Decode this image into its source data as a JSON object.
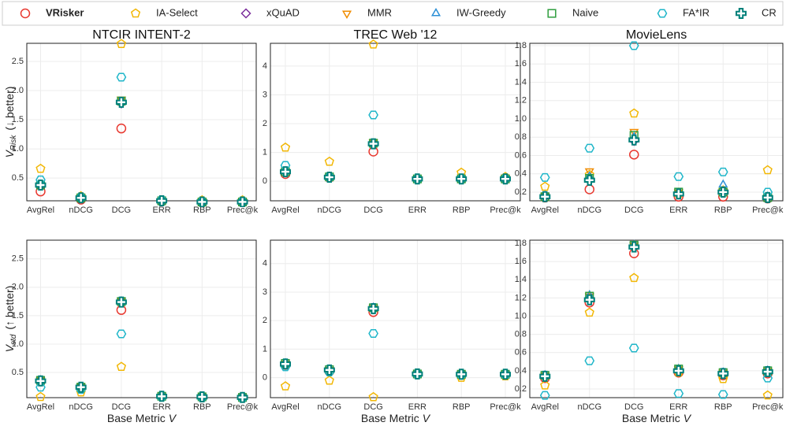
{
  "legend": {
    "series": [
      {
        "name": "VRisker",
        "color": "#e8382f",
        "marker": "circle"
      },
      {
        "name": "IA-Select",
        "color": "#f2b705",
        "marker": "pentagon"
      },
      {
        "name": "xQuAD",
        "color": "#7b2d9b",
        "marker": "diamond"
      },
      {
        "name": "MMR",
        "color": "#f08c00",
        "marker": "triangle-down"
      },
      {
        "name": "IW-Greedy",
        "color": "#2b8fd6",
        "marker": "triangle"
      },
      {
        "name": "Naive",
        "color": "#2e9e3e",
        "marker": "square"
      },
      {
        "name": "FA*IR",
        "color": "#1fb6c9",
        "marker": "hexagon"
      },
      {
        "name": "CR",
        "color": "#00807a",
        "marker": "plus"
      }
    ]
  },
  "chart_data": [
    {
      "type": "scatter",
      "title": "NTCIR INTENT-2",
      "ylabel_main": "V",
      "ylabel_sub": "Risk",
      "ylabel_note": "(↓ better)",
      "categories": [
        "AvgRel",
        "nDCG",
        "DCG",
        "ERR",
        "RBP",
        "Prec@k"
      ],
      "ylim": [
        0.11,
        2.81
      ],
      "yticks": [
        0.5,
        {
          "value": 1,
          "label": "1.0"
        },
        1.5,
        {
          "value": 2,
          "label": "2.0"
        },
        2.5
      ],
      "series": [
        {
          "values": [
            0.27,
            0.13,
            1.35,
            0.1,
            0.08,
            0.08
          ]
        },
        {
          "values": [
            0.66,
            0.19,
            2.8,
            0.12,
            0.12,
            0.12
          ]
        },
        {
          "values": [
            0.38,
            0.16,
            1.78,
            0.11,
            0.09,
            0.09
          ]
        },
        {
          "values": [
            0.38,
            0.17,
            1.85,
            0.11,
            0.09,
            0.09
          ]
        },
        {
          "values": [
            0.38,
            0.16,
            1.8,
            0.11,
            0.09,
            0.09
          ]
        },
        {
          "values": [
            0.38,
            0.16,
            1.82,
            0.11,
            0.09,
            0.09
          ]
        },
        {
          "values": [
            0.47,
            0.17,
            2.23,
            0.12,
            0.1,
            0.1
          ]
        },
        {
          "values": [
            0.38,
            0.16,
            1.8,
            0.11,
            0.09,
            0.09
          ]
        }
      ]
    },
    {
      "type": "scatter",
      "title": "TREC Web '12",
      "categories": [
        "AvgRel",
        "nDCG",
        "DCG",
        "ERR",
        "RBP",
        "Prec@k"
      ],
      "ylim": [
        -0.68,
        4.79
      ],
      "yticks": [
        0,
        1,
        2,
        3,
        4
      ],
      "series": [
        {
          "values": [
            0.25,
            0.12,
            1.03,
            0.08,
            0.08,
            0.08
          ]
        },
        {
          "values": [
            1.17,
            0.68,
            4.75,
            0.08,
            0.3,
            0.15
          ]
        },
        {
          "values": [
            0.33,
            0.15,
            1.3,
            0.08,
            0.08,
            0.08
          ]
        },
        {
          "values": [
            0.33,
            0.15,
            1.35,
            0.08,
            0.08,
            0.08
          ]
        },
        {
          "values": [
            0.33,
            0.15,
            1.3,
            0.08,
            0.08,
            0.08
          ]
        },
        {
          "values": [
            0.33,
            0.15,
            1.32,
            0.08,
            0.08,
            0.08
          ]
        },
        {
          "values": [
            0.55,
            0.15,
            2.3,
            0.08,
            0.09,
            0.09
          ]
        },
        {
          "values": [
            0.33,
            0.14,
            1.3,
            0.08,
            0.08,
            0.08
          ]
        }
      ]
    },
    {
      "type": "scatter",
      "title": "MovieLens",
      "categories": [
        "AvgRel",
        "nDCG",
        "DCG",
        "ERR",
        "RBP",
        "Prec@k"
      ],
      "ylim": [
        0.105,
        1.826
      ],
      "yticks": [
        0.2,
        0.4,
        0.6,
        0.8,
        {
          "value": 1,
          "label": "1.0"
        },
        1.2,
        1.4,
        1.6,
        1.8
      ],
      "series": [
        {
          "values": [
            0.14,
            0.23,
            0.61,
            0.15,
            0.15,
            0.13
          ]
        },
        {
          "values": [
            0.26,
            0.39,
            1.06,
            0.18,
            0.22,
            0.44
          ]
        },
        {
          "values": [
            0.15,
            0.33,
            0.76,
            0.18,
            0.2,
            0.14
          ]
        },
        {
          "values": [
            0.16,
            0.43,
            0.86,
            0.2,
            0.2,
            0.14
          ]
        },
        {
          "values": [
            0.16,
            0.37,
            0.8,
            0.19,
            0.28,
            0.15
          ]
        },
        {
          "values": [
            0.15,
            0.35,
            0.82,
            0.2,
            0.2,
            0.14
          ]
        },
        {
          "values": [
            0.36,
            0.68,
            1.8,
            0.37,
            0.42,
            0.2
          ]
        },
        {
          "values": [
            0.15,
            0.33,
            0.77,
            0.18,
            0.2,
            0.14
          ]
        }
      ]
    },
    {
      "type": "scatter",
      "ylabel_main": "V",
      "ylabel_sub": "std",
      "ylabel_note": "(↑ better)",
      "xlabel": "Base Metric",
      "xlabel_var": "V",
      "categories": [
        "AvgRel",
        "nDCG",
        "DCG",
        "ERR",
        "RBP",
        "Prec@k"
      ],
      "ylim": [
        0.056,
        2.83
      ],
      "yticks": [
        0.5,
        {
          "value": 1,
          "label": "1.0"
        },
        1.5,
        {
          "value": 2,
          "label": "2.0"
        },
        2.5
      ],
      "series": [
        {
          "values": [
            0.35,
            0.22,
            1.6,
            0.08,
            0.07,
            0.06
          ]
        },
        {
          "values": [
            0.07,
            0.15,
            0.6,
            0.07,
            0.06,
            0.05
          ]
        },
        {
          "values": [
            0.36,
            0.24,
            1.74,
            0.08,
            0.07,
            0.06
          ]
        },
        {
          "values": [
            0.37,
            0.25,
            1.76,
            0.08,
            0.07,
            0.06
          ]
        },
        {
          "values": [
            0.36,
            0.24,
            1.75,
            0.08,
            0.07,
            0.06
          ]
        },
        {
          "values": [
            0.36,
            0.24,
            1.75,
            0.08,
            0.07,
            0.06
          ]
        },
        {
          "values": [
            0.24,
            0.2,
            1.18,
            0.07,
            0.06,
            0.05
          ]
        },
        {
          "values": [
            0.35,
            0.24,
            1.74,
            0.08,
            0.07,
            0.06
          ]
        }
      ]
    },
    {
      "type": "scatter",
      "xlabel": "Base Metric",
      "xlabel_var": "V",
      "categories": [
        "AvgRel",
        "nDCG",
        "DCG",
        "ERR",
        "RBP",
        "Prec@k"
      ],
      "ylim": [
        -0.7,
        4.82
      ],
      "yticks": [
        0,
        1,
        2,
        3,
        4
      ],
      "series": [
        {
          "values": [
            0.45,
            0.22,
            2.3,
            0.12,
            0.11,
            0.11
          ]
        },
        {
          "values": [
            -0.3,
            -0.1,
            -0.68,
            0.12,
            0,
            0.05
          ]
        },
        {
          "values": [
            0.5,
            0.27,
            2.45,
            0.13,
            0.12,
            0.12
          ]
        },
        {
          "values": [
            0.5,
            0.28,
            2.45,
            0.13,
            0.12,
            0.12
          ]
        },
        {
          "values": [
            0.5,
            0.28,
            2.45,
            0.13,
            0.12,
            0.12
          ]
        },
        {
          "values": [
            0.5,
            0.28,
            2.45,
            0.13,
            0.12,
            0.12
          ]
        },
        {
          "values": [
            0.38,
            0.2,
            1.55,
            0.12,
            0.1,
            0.1
          ]
        },
        {
          "values": [
            0.48,
            0.27,
            2.42,
            0.13,
            0.12,
            0.12
          ]
        }
      ]
    },
    {
      "type": "scatter",
      "xlabel": "Base Metric",
      "xlabel_var": "V",
      "categories": [
        "AvgRel",
        "nDCG",
        "DCG",
        "ERR",
        "RBP",
        "Prec@k"
      ],
      "ylim": [
        0.105,
        1.835
      ],
      "yticks": [
        0.2,
        0.4,
        0.6,
        0.8,
        {
          "value": 1,
          "label": "1.0"
        },
        1.2,
        1.4,
        1.6,
        1.8
      ],
      "series": [
        {
          "values": [
            0.32,
            1.15,
            1.69,
            0.38,
            0.35,
            0.37
          ]
        },
        {
          "values": [
            0.24,
            1.04,
            1.42,
            0.38,
            0.31,
            0.13
          ]
        },
        {
          "values": [
            0.35,
            1.2,
            1.76,
            0.41,
            0.38,
            0.4
          ]
        },
        {
          "values": [
            0.35,
            1.22,
            1.78,
            0.42,
            0.38,
            0.4
          ]
        },
        {
          "values": [
            0.35,
            1.23,
            1.78,
            0.42,
            0.38,
            0.4
          ]
        },
        {
          "values": [
            0.35,
            1.22,
            1.78,
            0.42,
            0.38,
            0.4
          ]
        },
        {
          "values": [
            0.13,
            0.51,
            0.65,
            0.15,
            0.14,
            0.32
          ]
        },
        {
          "values": [
            0.34,
            1.18,
            1.76,
            0.4,
            0.37,
            0.39
          ]
        }
      ]
    }
  ]
}
